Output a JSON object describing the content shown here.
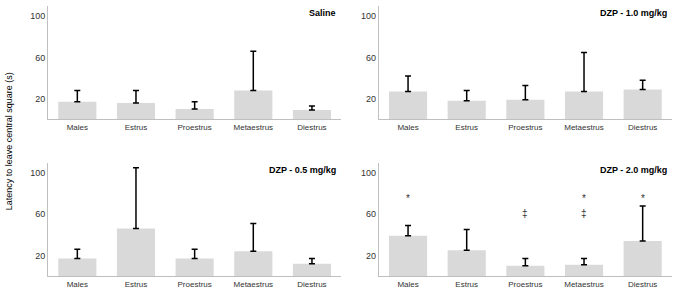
{
  "y_label": "Latency to leave central square (s)",
  "chart_data": [
    {
      "type": "bar",
      "title": "Saline",
      "categories": [
        "Males",
        "Estrus",
        "Proestrus",
        "Metaestrus",
        "Diestrus"
      ],
      "values": [
        17,
        16,
        10,
        28,
        9
      ],
      "errors": [
        11,
        12,
        7,
        38,
        4
      ],
      "color": "#d9d9d9",
      "ylim": [
        0,
        110
      ],
      "yticks": [
        20,
        60,
        100
      ],
      "grid": false,
      "annotations": []
    },
    {
      "type": "bar",
      "title": "DZP - 1.0 mg/kg",
      "categories": [
        "Males",
        "Estrus",
        "Proestrus",
        "Metaestrus",
        "Diestrus"
      ],
      "values": [
        27,
        18,
        19,
        27,
        29
      ],
      "errors": [
        15,
        10,
        14,
        38,
        9
      ],
      "color": "#d9d9d9",
      "ylim": [
        0,
        110
      ],
      "yticks": [
        20,
        60,
        100
      ],
      "grid": false,
      "annotations": []
    },
    {
      "type": "bar",
      "title": "DZP - 0.5 mg/kg",
      "categories": [
        "Males",
        "Estrus",
        "Proestrus",
        "Metaestrus",
        "Diestrus"
      ],
      "values": [
        17,
        46,
        17,
        24,
        12
      ],
      "errors": [
        9,
        59,
        9,
        27,
        5
      ],
      "color": "#d9d9d9",
      "ylim": [
        0,
        110
      ],
      "yticks": [
        20,
        60,
        100
      ],
      "grid": false,
      "annotations": []
    },
    {
      "type": "bar",
      "title": "DZP - 2.0 mg/kg",
      "categories": [
        "Males",
        "Estrus",
        "Proestrus",
        "Metaestrus",
        "Diestrus"
      ],
      "values": [
        39,
        25,
        10,
        11,
        34
      ],
      "errors": [
        10,
        20,
        7,
        6,
        34
      ],
      "color": "#d9d9d9",
      "ylim": [
        0,
        110
      ],
      "yticks": [
        20,
        60,
        100
      ],
      "grid": false,
      "annotations": [
        {
          "category": "Males",
          "y": 75,
          "text": "*"
        },
        {
          "category": "Proestrus",
          "y": 61,
          "text": "‡"
        },
        {
          "category": "Metaestrus",
          "y": 75,
          "text": "*"
        },
        {
          "category": "Metaestrus",
          "y": 61,
          "text": "‡"
        },
        {
          "category": "Diestrus",
          "y": 75,
          "text": "*"
        }
      ]
    }
  ]
}
